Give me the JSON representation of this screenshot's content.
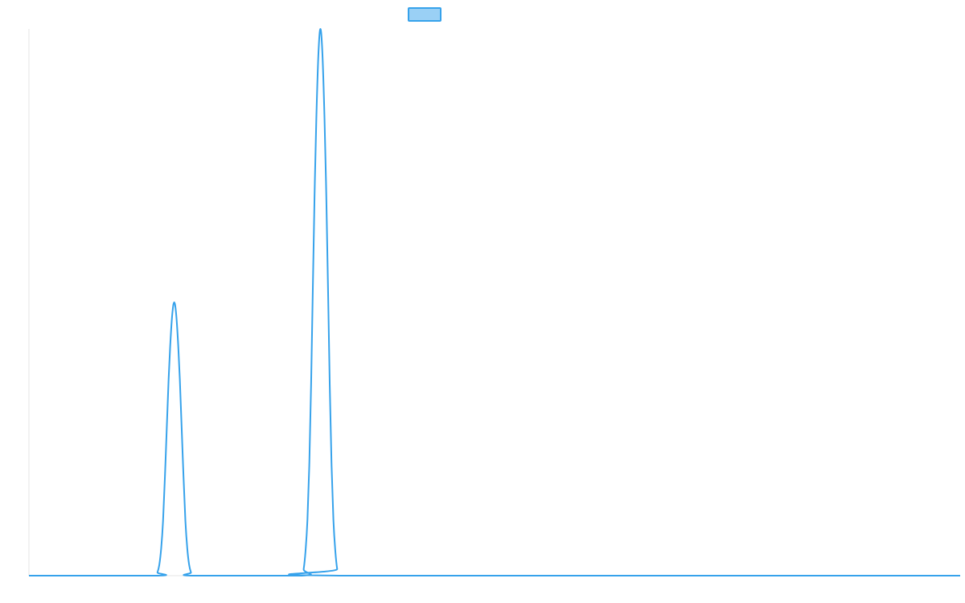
{
  "chart_data": {
    "type": "line",
    "title": "",
    "xlabel": "",
    "ylabel": "",
    "grid": false,
    "legend": {
      "position": "top-center",
      "entries": [
        {
          "name": "",
          "color": "#36a2eb",
          "fill": "#9ad0f5"
        }
      ]
    },
    "xlim": [
      0,
      1000
    ],
    "ylim": [
      0,
      1
    ],
    "series": [
      {
        "name": "",
        "color": "#36a2eb",
        "points": [
          [
            0,
            0
          ],
          [
            136,
            0
          ],
          [
            138,
            0.006
          ],
          [
            140,
            0.02
          ],
          [
            142,
            0.05
          ],
          [
            144,
            0.1
          ],
          [
            146,
            0.18
          ],
          [
            148,
            0.27
          ],
          [
            150,
            0.36
          ],
          [
            152,
            0.43
          ],
          [
            154,
            0.48
          ],
          [
            156,
            0.5
          ],
          [
            158,
            0.48
          ],
          [
            160,
            0.43
          ],
          [
            162,
            0.36
          ],
          [
            164,
            0.27
          ],
          [
            166,
            0.18
          ],
          [
            168,
            0.1
          ],
          [
            170,
            0.05
          ],
          [
            172,
            0.02
          ],
          [
            174,
            0.006
          ],
          [
            176,
            0
          ],
          [
            293,
            0
          ],
          [
            295,
            0.012
          ],
          [
            297,
            0.045
          ],
          [
            299,
            0.1
          ],
          [
            301,
            0.2
          ],
          [
            303,
            0.35
          ],
          [
            305,
            0.54
          ],
          [
            307,
            0.72
          ],
          [
            309,
            0.86
          ],
          [
            311,
            0.96
          ],
          [
            313,
            1.0
          ],
          [
            315,
            0.96
          ],
          [
            317,
            0.86
          ],
          [
            319,
            0.72
          ],
          [
            321,
            0.54
          ],
          [
            323,
            0.35
          ],
          [
            325,
            0.2
          ],
          [
            327,
            0.1
          ],
          [
            329,
            0.045
          ],
          [
            331,
            0.012
          ],
          [
            333,
            0
          ],
          [
            1000,
            0
          ]
        ]
      }
    ]
  }
}
